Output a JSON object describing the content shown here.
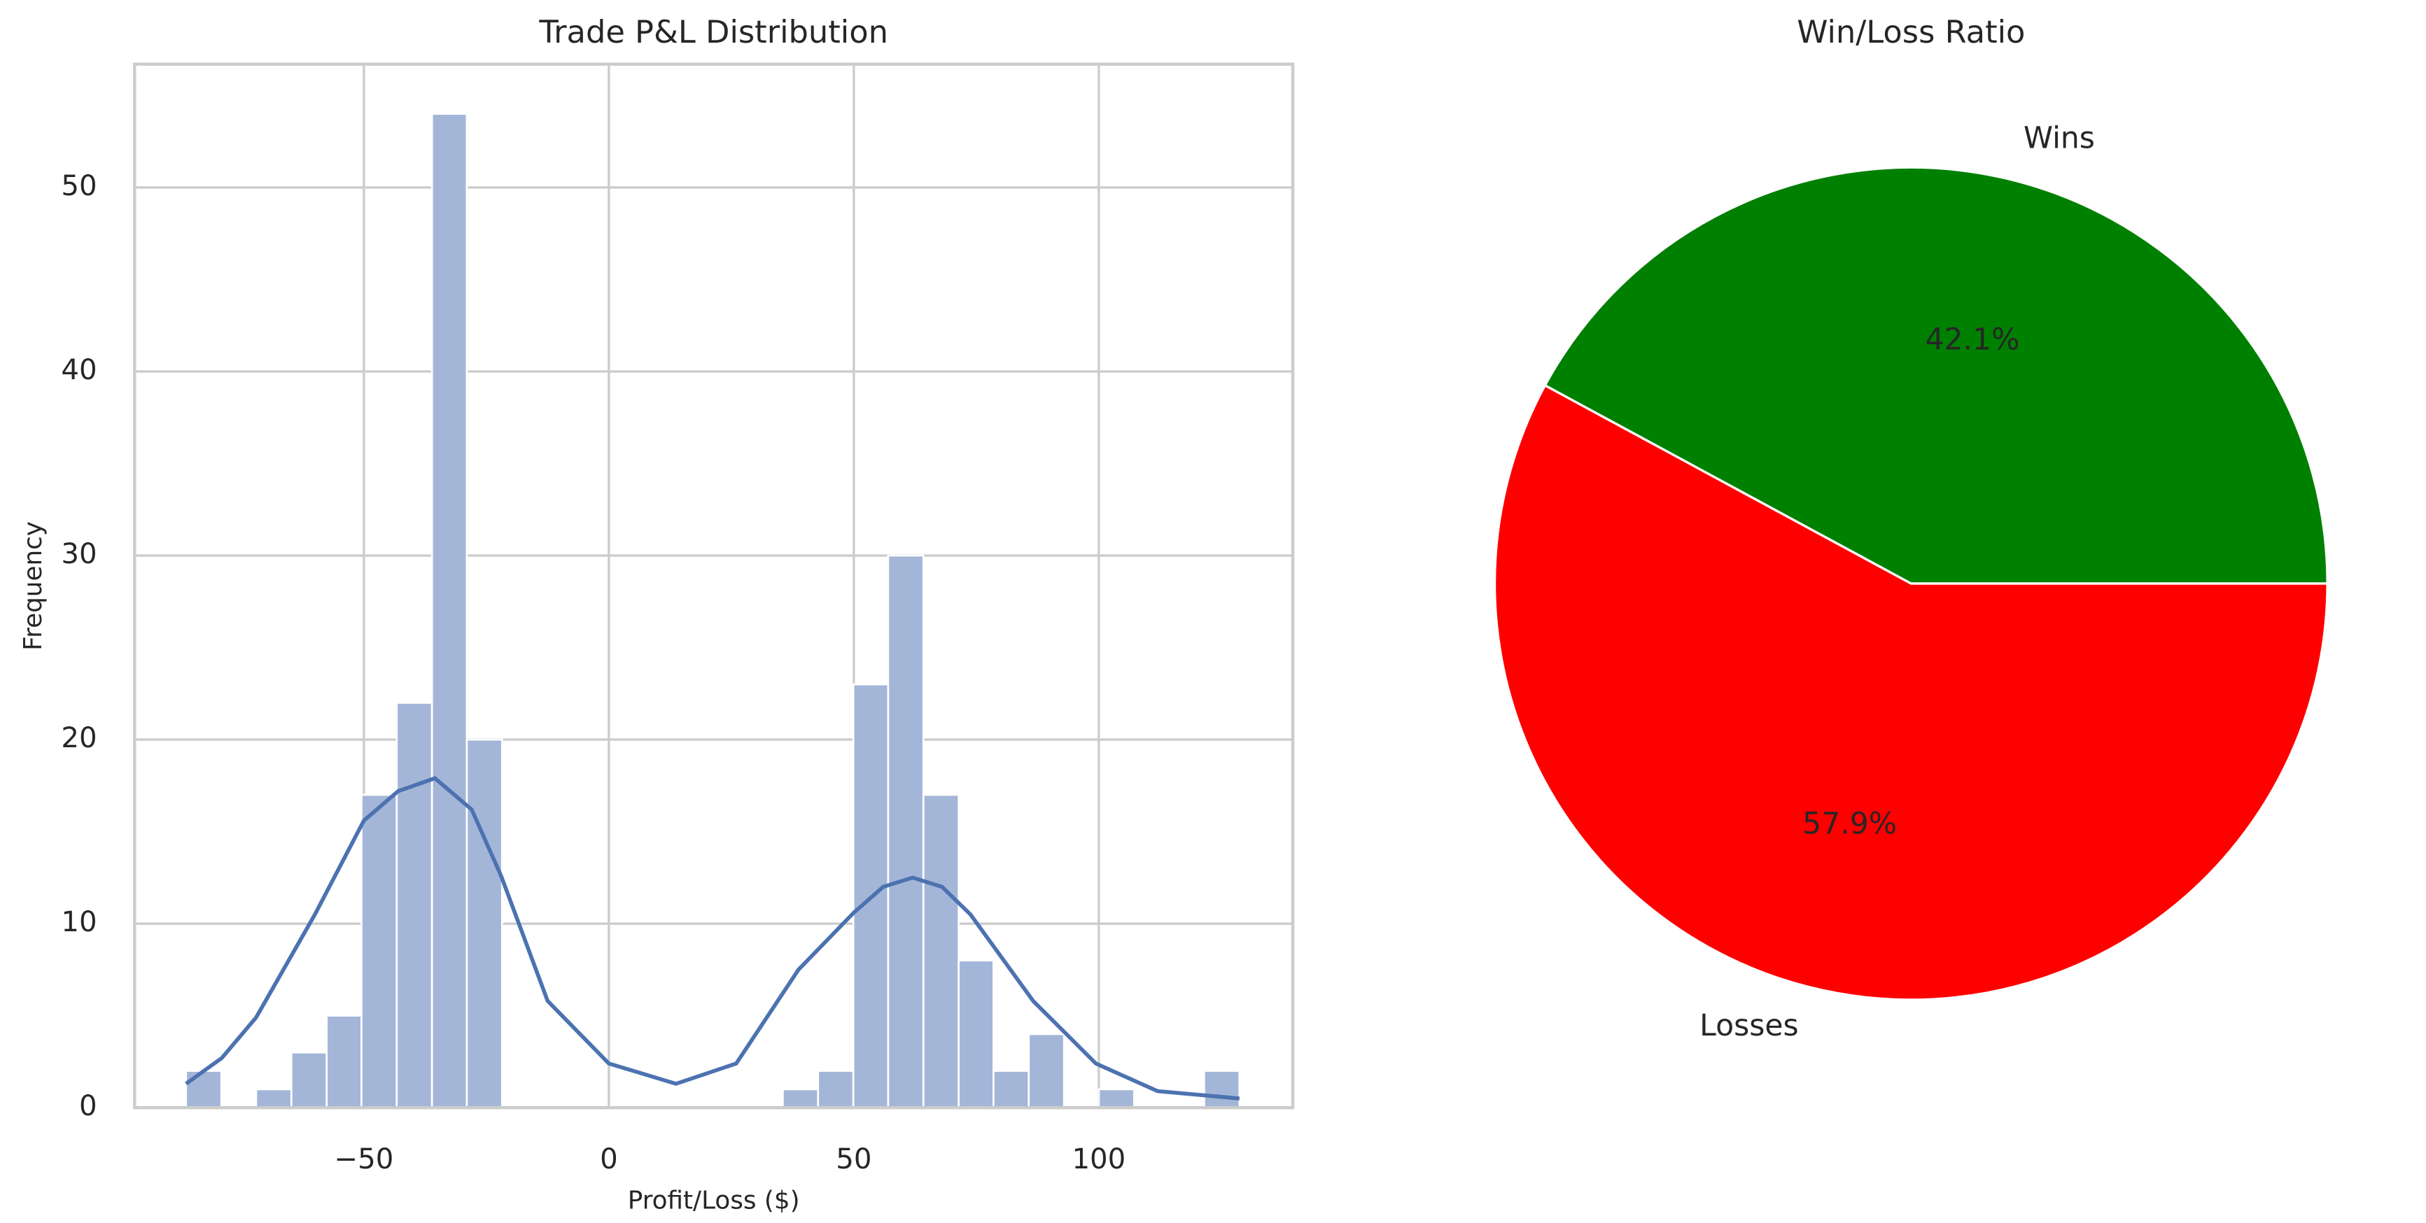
{
  "chart_data": [
    {
      "type": "histogram",
      "title": "Trade P&L Distribution",
      "xlabel": "Profit/Loss ($)",
      "ylabel": "Frequency",
      "bins": [
        -86.3,
        -79.1,
        -72.0,
        -64.8,
        -57.6,
        -50.5,
        -43.3,
        -36.1,
        -29.0,
        -21.8,
        -14.6,
        -7.5,
        -0.3,
        6.9,
        14.0,
        21.2,
        28.4,
        35.5,
        42.7,
        49.9,
        57.0,
        64.2,
        71.4,
        78.5,
        85.7,
        92.9,
        100.0,
        107.2,
        114.4,
        121.5,
        128.7
      ],
      "counts": [
        2,
        0,
        1,
        3,
        5,
        17,
        22,
        54,
        20,
        0,
        0,
        0,
        0,
        0,
        0,
        0,
        0,
        1,
        2,
        23,
        30,
        17,
        8,
        2,
        4,
        0,
        1,
        0,
        0,
        2
      ],
      "color": "#a4b6d8",
      "kde": {
        "color": "#4c72b0",
        "x": [
          -86.3,
          -79,
          -72,
          -60,
          -50,
          -43,
          -35.5,
          -28,
          -22,
          -12.5,
          0,
          13.7,
          26,
          38.7,
          50,
          56,
          62,
          68,
          73.8,
          86.6,
          99.4,
          112,
          128.7
        ],
        "y": [
          1.3,
          2.7,
          4.9,
          10.5,
          15.6,
          17.2,
          17.9,
          16.2,
          12.6,
          5.8,
          2.4,
          1.3,
          2.4,
          7.5,
          10.6,
          12.0,
          12.5,
          12.0,
          10.5,
          5.8,
          2.4,
          0.9,
          0.5
        ]
      },
      "xlim": [
        -96.8,
        139.6
      ],
      "ylim": [
        0,
        56.7
      ],
      "xticks": [
        {
          "value": -50,
          "label": "−50"
        },
        0,
        50,
        100
      ],
      "yticks": [
        0,
        10,
        20,
        30,
        40,
        50
      ],
      "grid": true
    },
    {
      "type": "pie",
      "title": "Win/Loss Ratio",
      "categories": [
        "Wins",
        "Losses"
      ],
      "values": [
        42.1,
        57.9
      ],
      "value_labels": [
        "42.1%",
        "57.9%"
      ],
      "colors": [
        "#008000",
        "#ff0000"
      ]
    }
  ]
}
